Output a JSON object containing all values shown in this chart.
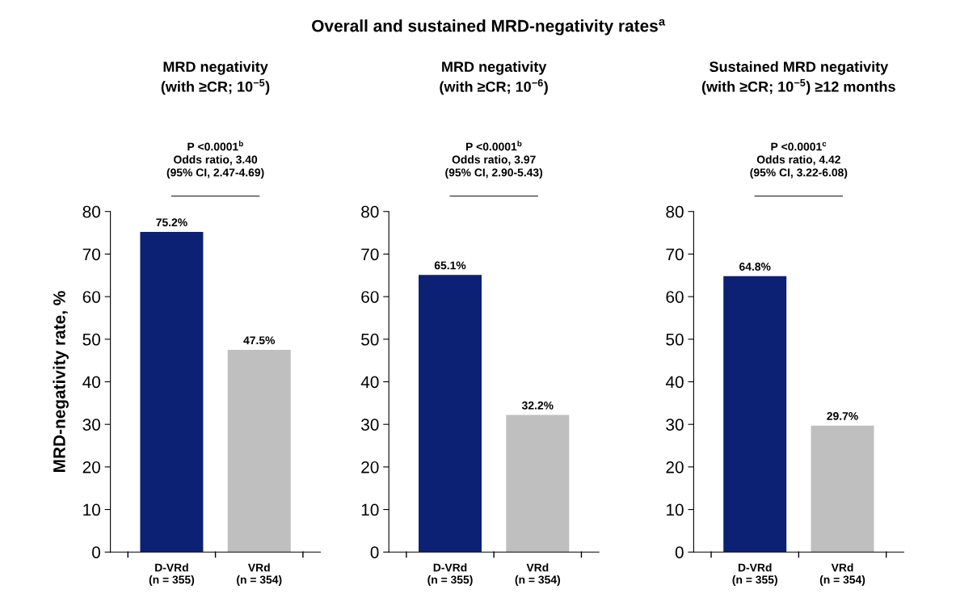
{
  "chart_data": [
    {
      "type": "bar",
      "title": "MRD negativity",
      "subtitle": "(with ≥CR; 10$^{−5}$)",
      "ylabel": "MRD-negativity rate, %",
      "categories": [
        "D-VRd\n(n = 355)",
        "VRd\n(n = 354)"
      ],
      "values": [
        75.2,
        47.5
      ],
      "colors": [
        "#0c2074",
        "#bfbfbf"
      ],
      "value_labels": [
        "75.2%",
        "47.5%"
      ],
      "ylim": [
        0,
        80
      ],
      "yticks": [
        0,
        10,
        20,
        30,
        40,
        50,
        60,
        70,
        80
      ],
      "grid": false,
      "legend": false,
      "annotations": [
        "Overall and sustained MRD-negativity rates$^{a}$",
        "P <0.0001$^{b}$\nOdds ratio, 3.40\n(95% CI, 2.47-4.69)"
      ]
    },
    {
      "type": "bar",
      "title": "MRD negativity",
      "subtitle": "(with ≥CR; 10$^{−6}$)",
      "categories": [
        "D-VRd\n(n = 355)",
        "VRd\n(n = 354)"
      ],
      "values": [
        65.1,
        32.2
      ],
      "colors": [
        "#0c2074",
        "#bfbfbf"
      ],
      "value_labels": [
        "65.1%",
        "32.2%"
      ],
      "ylim": [
        0,
        80
      ],
      "yticks": [
        0,
        10,
        20,
        30,
        40,
        50,
        60,
        70,
        80
      ],
      "grid": false,
      "legend": false,
      "annotations": [
        "P <0.0001$^{b}$\nOdds ratio, 3.97\n(95% CI, 2.90-5.43)"
      ]
    },
    {
      "type": "bar",
      "title": "Sustained MRD negativity",
      "subtitle": "(with ≥CR; 10$^{−5}$) ≥12 months",
      "categories": [
        "D-VRd\n(n = 355)",
        "VRd\n(n = 354)"
      ],
      "values": [
        64.8,
        29.7
      ],
      "colors": [
        "#0c2074",
        "#bfbfbf"
      ],
      "value_labels": [
        "64.8%",
        "29.7%"
      ],
      "ylim": [
        0,
        80
      ],
      "yticks": [
        0,
        10,
        20,
        30,
        40,
        50,
        60,
        70,
        80
      ],
      "grid": false,
      "legend": false,
      "annotations": [
        "P <0.0001$^{c}$\nOdds ratio, 4.42\n(95% CI, 3.22-6.08)"
      ]
    }
  ]
}
